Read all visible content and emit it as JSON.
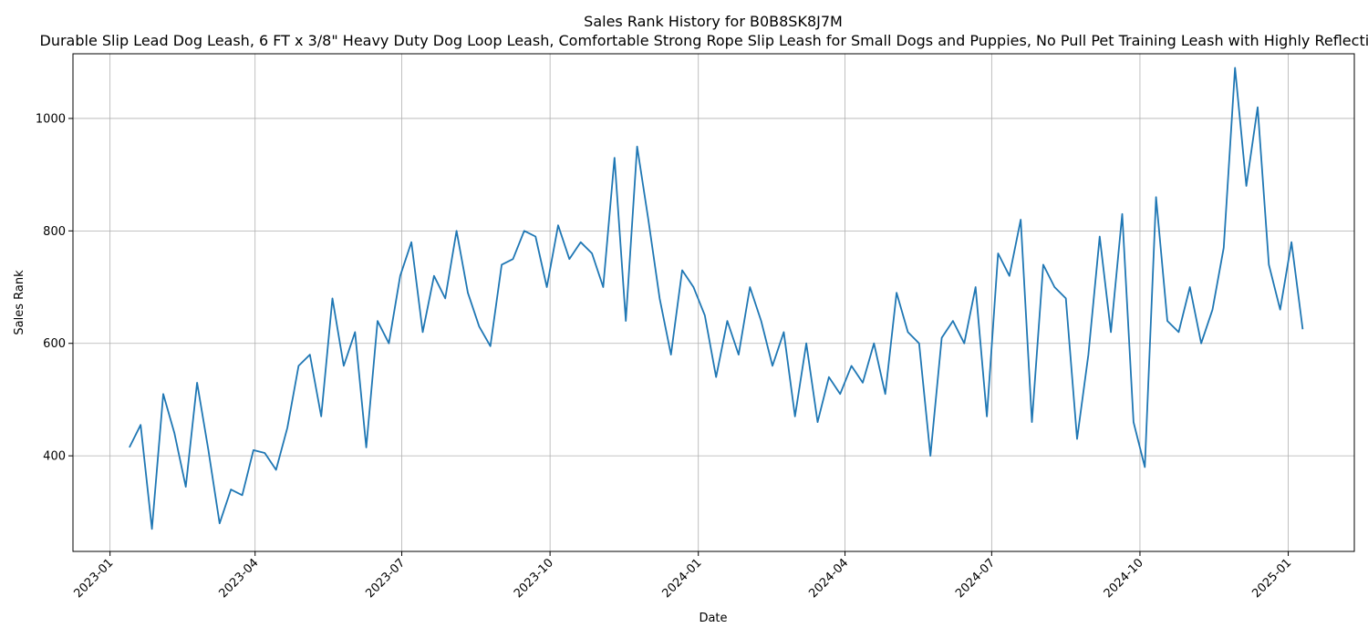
{
  "chart_data": {
    "type": "line",
    "title": "Sales Rank History for B0B8SK8J7M",
    "subtitle": "Durable Slip Lead Dog Leash, 6 FT x 3/8\" Heavy Duty Dog Loop Leash, Comfortable Strong Rope Slip Leash for Small Dogs and Puppies, No Pull Pet Training Leash with Highly Reflective",
    "xlabel": "Date",
    "ylabel": "Sales Rank",
    "xlim": [
      "2022-12-09",
      "2025-02-11"
    ],
    "ylim": [
      230,
      1115
    ],
    "grid": true,
    "x_ticks": [
      "2023-01",
      "2023-04",
      "2023-07",
      "2023-10",
      "2024-01",
      "2024-04",
      "2024-07",
      "2024-10",
      "2025-01"
    ],
    "y_ticks": [
      400,
      600,
      800,
      1000
    ],
    "color": "#1f77b4",
    "series": [
      {
        "x": [
          "2023-01-13",
          "2023-01-20",
          "2023-01-27",
          "2023-02-03",
          "2023-02-10",
          "2023-02-17",
          "2023-02-24",
          "2023-03-03",
          "2023-03-10",
          "2023-03-17",
          "2023-03-24",
          "2023-03-31",
          "2023-04-07",
          "2023-04-14",
          "2023-04-21",
          "2023-04-28",
          "2023-05-05",
          "2023-05-12",
          "2023-05-19",
          "2023-05-26",
          "2023-06-02",
          "2023-06-09",
          "2023-06-16",
          "2023-06-23",
          "2023-06-30",
          "2023-07-07",
          "2023-07-14",
          "2023-07-21",
          "2023-07-28",
          "2023-08-04",
          "2023-08-11",
          "2023-08-18",
          "2023-08-25",
          "2023-09-01",
          "2023-09-08",
          "2023-09-15",
          "2023-09-22",
          "2023-09-29",
          "2023-10-06",
          "2023-10-13",
          "2023-10-20",
          "2023-10-27",
          "2023-11-03",
          "2023-11-10",
          "2023-11-17",
          "2023-11-24",
          "2023-12-01",
          "2023-12-08",
          "2023-12-15",
          "2023-12-22",
          "2023-12-29",
          "2024-01-05",
          "2024-01-12",
          "2024-01-19",
          "2024-01-26",
          "2024-02-02",
          "2024-02-09",
          "2024-02-16",
          "2024-02-23",
          "2024-03-01",
          "2024-03-08",
          "2024-03-15",
          "2024-03-22",
          "2024-03-29",
          "2024-04-05",
          "2024-04-12",
          "2024-04-19",
          "2024-04-26",
          "2024-05-03",
          "2024-05-10",
          "2024-05-17",
          "2024-05-24",
          "2024-05-31",
          "2024-06-07",
          "2024-06-14",
          "2024-06-21",
          "2024-06-28",
          "2024-07-05",
          "2024-07-12",
          "2024-07-19",
          "2024-07-26",
          "2024-08-02",
          "2024-08-09",
          "2024-08-16",
          "2024-08-23",
          "2024-08-30",
          "2024-09-06",
          "2024-09-13",
          "2024-09-20",
          "2024-09-27",
          "2024-10-04",
          "2024-10-11",
          "2024-10-18",
          "2024-10-25",
          "2024-11-01",
          "2024-11-08",
          "2024-11-15",
          "2024-11-22",
          "2024-11-29",
          "2024-12-06",
          "2024-12-13",
          "2024-12-20",
          "2024-12-27",
          "2025-01-03",
          "2025-01-10"
        ],
        "values": [
          415,
          455,
          270,
          510,
          440,
          345,
          530,
          410,
          280,
          340,
          330,
          410,
          405,
          375,
          450,
          560,
          580,
          470,
          680,
          560,
          620,
          415,
          640,
          600,
          720,
          780,
          620,
          720,
          680,
          800,
          690,
          630,
          595,
          740,
          750,
          800,
          790,
          700,
          810,
          750,
          780,
          760,
          700,
          930,
          640,
          950,
          820,
          680,
          580,
          730,
          700,
          650,
          540,
          640,
          580,
          700,
          640,
          560,
          620,
          470,
          600,
          460,
          540,
          510,
          560,
          530,
          600,
          510,
          690,
          620,
          600,
          400,
          610,
          640,
          600,
          700,
          470,
          760,
          720,
          820,
          460,
          740,
          700,
          680,
          430,
          580,
          790,
          620,
          830,
          460,
          380,
          860,
          640,
          620,
          700,
          600,
          660,
          770,
          1090,
          880,
          1020,
          740,
          660,
          780,
          625
        ]
      }
    ]
  }
}
